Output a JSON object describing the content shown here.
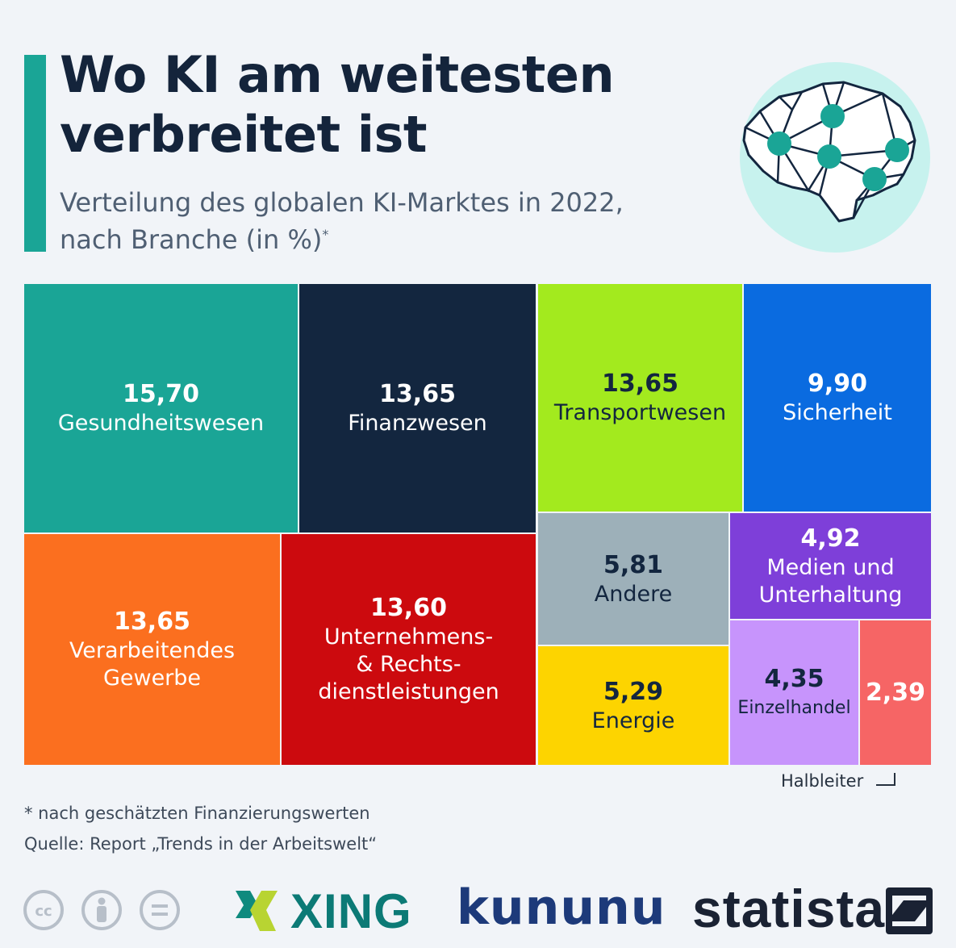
{
  "header": {
    "title_line1": "Wo KI am weitesten",
    "title_line2": "verbreitet ist",
    "subtitle_line1": "Verteilung des globalen KI-Marktes in 2022,",
    "subtitle_line2": "nach Branche (in %)",
    "subtitle_marker": "*",
    "icon": "brain-network-icon"
  },
  "chart_data": {
    "type": "treemap",
    "title": "Wo KI am weitesten verbreitet ist",
    "unit": "%",
    "items": [
      {
        "key": "gesundheit",
        "value": "15,70",
        "label": "Gesundheitswesen",
        "color": "#1aa596",
        "text_color": "#ffffff"
      },
      {
        "key": "finanz",
        "value": "13,65",
        "label": "Finanzwesen",
        "color": "#13263f",
        "text_color": "#ffffff"
      },
      {
        "key": "transport",
        "value": "13,65",
        "label": "Transportwesen",
        "color": "#a3ea1e",
        "text_color": "#13263f"
      },
      {
        "key": "sicherheit",
        "value": "9,90",
        "label": "Sicherheit",
        "color": "#0a6be0",
        "text_color": "#ffffff"
      },
      {
        "key": "verarbeitend",
        "value": "13,65",
        "label": "Verarbeitendes\nGewerbe",
        "color": "#fb6f1f",
        "text_color": "#ffffff"
      },
      {
        "key": "unternehmen",
        "value": "13,60",
        "label": "Unternehmens-\n& Rechts-\ndienstleistungen",
        "color": "#cc0a0e",
        "text_color": "#ffffff"
      },
      {
        "key": "andere",
        "value": "5,81",
        "label": "Andere",
        "color": "#9db0b9",
        "text_color": "#13263f"
      },
      {
        "key": "medien",
        "value": "4,92",
        "label": "Medien und\nUnterhaltung",
        "color": "#7e3fd9",
        "text_color": "#ffffff"
      },
      {
        "key": "energie",
        "value": "5,29",
        "label": "Energie",
        "color": "#fdd400",
        "text_color": "#13263f"
      },
      {
        "key": "einzelhandel",
        "value": "4,35",
        "label": "Einzelhandel",
        "color": "#c794fc",
        "text_color": "#13263f"
      },
      {
        "key": "halbleiter",
        "value": "2,39",
        "label": "Halbleiter",
        "color": "#f66565",
        "text_color": "#ffffff"
      }
    ]
  },
  "footer": {
    "footnote": "* nach geschätzten Finanzierungswerten",
    "source": "Quelle: Report „Trends in der Arbeitswelt“",
    "halbleiter_callout": "Halbleiter",
    "logos": {
      "xing": "XING",
      "kununu": "kununu",
      "statista": "statista"
    },
    "license_icons": [
      "cc-icon",
      "by-icon",
      "nd-icon"
    ]
  }
}
